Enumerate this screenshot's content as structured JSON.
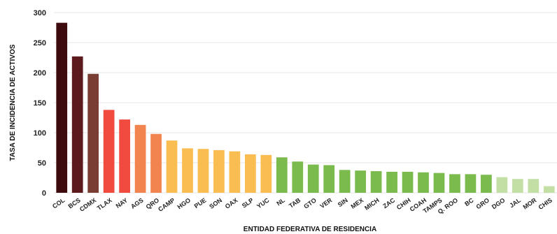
{
  "chart_data": {
    "type": "bar",
    "title": "",
    "xlabel": "ENTIDAD FEDERATIVA DE RESIDENCIA",
    "ylabel": "TASA DE INCIDENCIA DE ACTIVOS",
    "ylim": [
      0,
      300
    ],
    "yticks": [
      0,
      50,
      100,
      150,
      200,
      250,
      300
    ],
    "grid": true,
    "legend": "none",
    "categories": [
      "COL",
      "BCS",
      "CDMX",
      "TLAX",
      "NAY",
      "AGS",
      "QRO",
      "CAMP",
      "HGO",
      "PUE",
      "SON",
      "OAX",
      "SLP",
      "YUC",
      "NL",
      "TAB",
      "GTO",
      "VER",
      "SIN",
      "MEX",
      "MICH",
      "ZAC",
      "CHIH",
      "COAH",
      "TAMPS",
      "Q. ROO",
      "BC",
      "GRO",
      "DGO",
      "JAL",
      "MOR",
      "CHIS"
    ],
    "values": [
      283,
      227,
      198,
      138,
      122,
      113,
      98,
      87,
      74,
      73,
      71,
      69,
      64,
      63,
      59,
      52,
      47,
      46,
      38,
      37,
      36,
      35,
      35,
      34,
      33,
      31,
      31,
      30,
      26,
      23,
      23,
      11
    ],
    "colors": [
      "#3d0a0e",
      "#5c1a1c",
      "#7a3d33",
      "#f14a3f",
      "#f14a3f",
      "#f1844f",
      "#f1844f",
      "#f9bd52",
      "#f9bd52",
      "#f9bd52",
      "#f9bd52",
      "#f9bd52",
      "#f9bd52",
      "#f9bd52",
      "#7bbb4e",
      "#7bbb4e",
      "#7bbb4e",
      "#7bbb4e",
      "#7bbb4e",
      "#7bbb4e",
      "#7bbb4e",
      "#7bbb4e",
      "#7bbb4e",
      "#7bbb4e",
      "#7bbb4e",
      "#7bbb4e",
      "#7bbb4e",
      "#7bbb4e",
      "#c4dfa5",
      "#c4dfa5",
      "#c4dfa5",
      "#c4dfa5"
    ]
  }
}
